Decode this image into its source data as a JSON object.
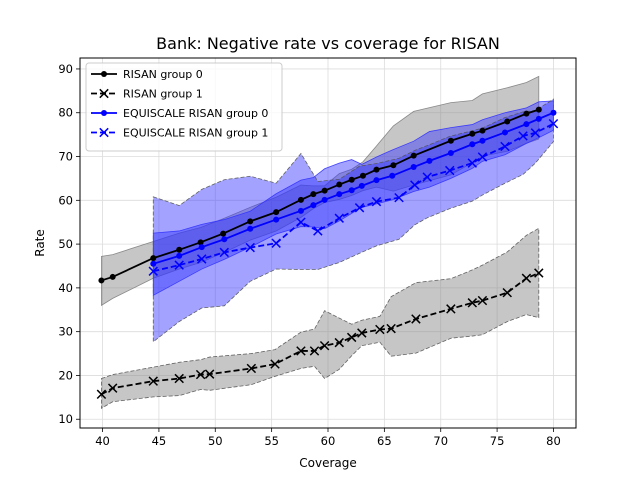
{
  "chart_data": {
    "type": "line",
    "title": "Bank: Negative rate vs coverage for RISAN",
    "xlabel": "Coverage",
    "ylabel": "Rate",
    "xlim": [
      38.0,
      82.0
    ],
    "ylim": [
      8.0,
      92.5
    ],
    "xticks": [
      "40",
      "45",
      "50",
      "55",
      "60",
      "65",
      "70",
      "75",
      "80"
    ],
    "yticks": [
      "10",
      "20",
      "30",
      "40",
      "50",
      "60",
      "70",
      "80",
      "90"
    ],
    "grid": true,
    "legend_position": "top-left",
    "series": [
      {
        "name": "RISAN group 0",
        "color": "#000000",
        "band_color": "#808080",
        "marker": "dot",
        "dashed": false,
        "x": [
          39.9,
          40.9,
          44.5,
          46.8,
          48.7,
          50.7,
          53.1,
          55.4,
          57.6,
          58.7,
          59.7,
          61.0,
          62.1,
          63.1,
          64.3,
          65.8,
          67.6,
          70.9,
          72.8,
          73.7,
          75.9,
          77.6,
          78.7
        ],
        "y": [
          41.7,
          42.5,
          46.8,
          48.7,
          50.4,
          52.4,
          55.2,
          57.3,
          60.1,
          61.4,
          62.2,
          63.6,
          64.7,
          65.6,
          67.0,
          68.0,
          70.2,
          73.6,
          75.2,
          75.9,
          78.0,
          79.8,
          80.7
        ],
        "band_upper": [
          47.2,
          47.6,
          50.6,
          52.5,
          53.8,
          55.8,
          58.4,
          60.7,
          63.5,
          63.3,
          63.3,
          66.1,
          67.1,
          68.8,
          72.4,
          77.0,
          80.3,
          82.3,
          82.8,
          84.3,
          85.7,
          86.9,
          88.3
        ],
        "band_lower": [
          36.0,
          37.6,
          42.2,
          44.3,
          45.8,
          48.0,
          50.9,
          53.0,
          56.1,
          58.1,
          59.5,
          60.2,
          61.1,
          62.2,
          63.0,
          62.1,
          63.5,
          65.8,
          68.6,
          70.1,
          71.2,
          73.0,
          74.0
        ]
      },
      {
        "name": "RISAN group 1",
        "color": "#000000",
        "band_color": "#808080",
        "marker": "x",
        "dashed": true,
        "x": [
          39.9,
          40.9,
          44.5,
          46.8,
          48.7,
          49.5,
          53.2,
          55.3,
          57.6,
          58.8,
          59.7,
          61.0,
          62.1,
          63.0,
          64.6,
          65.6,
          67.8,
          70.9,
          72.8,
          73.7,
          75.9,
          77.6,
          78.7
        ],
        "y": [
          15.7,
          17.1,
          18.7,
          19.3,
          20.2,
          20.3,
          21.6,
          22.6,
          25.6,
          25.6,
          26.8,
          27.5,
          28.7,
          29.7,
          30.5,
          30.7,
          32.9,
          35.2,
          36.6,
          37.1,
          38.9,
          42.2,
          43.4
        ],
        "band_upper": [
          19.3,
          20.2,
          21.9,
          23.0,
          23.6,
          24.2,
          25.0,
          25.9,
          29.9,
          30.6,
          34.8,
          33.1,
          31.7,
          32.6,
          33.5,
          38.0,
          41.2,
          42.1,
          44.1,
          45.2,
          48.2,
          52.0,
          53.6
        ],
        "band_lower": [
          12.5,
          14.0,
          15.1,
          15.4,
          16.8,
          16.6,
          17.9,
          19.8,
          21.6,
          22.1,
          19.3,
          21.4,
          24.5,
          26.8,
          27.6,
          24.4,
          25.1,
          28.5,
          29.0,
          29.3,
          32.3,
          33.9,
          33.2
        ]
      },
      {
        "name": "EQUISCALE RISAN group 0",
        "color": "#0000ff",
        "band_color": "#3333ff",
        "marker": "dot",
        "dashed": false,
        "x": [
          44.5,
          46.8,
          48.8,
          50.8,
          53.1,
          55.4,
          57.6,
          58.7,
          59.7,
          61.0,
          62.1,
          63.0,
          64.3,
          65.7,
          67.6,
          69.0,
          70.9,
          72.8,
          73.7,
          75.7,
          77.6,
          78.7,
          80.0
        ],
        "y": [
          45.5,
          47.3,
          49.3,
          51.1,
          53.5,
          55.6,
          57.6,
          58.9,
          60.1,
          61.4,
          62.3,
          63.3,
          64.6,
          65.6,
          67.6,
          69.0,
          70.8,
          72.8,
          73.6,
          75.5,
          77.4,
          78.6,
          80.0
        ],
        "band_upper": [
          52.5,
          53.0,
          54.5,
          55.6,
          57.5,
          61.5,
          64.6,
          65.2,
          67.2,
          68.5,
          69.3,
          68.2,
          69.9,
          71.5,
          73.5,
          75.7,
          76.6,
          77.3,
          78.4,
          80.0,
          81.1,
          82.5,
          82.7
        ],
        "band_lower": [
          38.3,
          41.5,
          44.3,
          46.5,
          49.3,
          52.3,
          54.0,
          53.9,
          53.5,
          55.3,
          57.0,
          58.4,
          59.2,
          60.1,
          62.0,
          63.0,
          65.0,
          67.3,
          68.9,
          70.4,
          73.0,
          74.3,
          76.0
        ]
      },
      {
        "name": "EQUISCALE RISAN group 1",
        "color": "#0000ff",
        "band_color": "#3333ff",
        "marker": "x",
        "dashed": true,
        "x": [
          44.5,
          46.8,
          48.8,
          50.8,
          53.1,
          55.4,
          57.6,
          59.1,
          61.0,
          62.8,
          64.3,
          66.3,
          67.7,
          68.8,
          70.8,
          72.8,
          73.7,
          75.7,
          77.3,
          78.4,
          80.0
        ],
        "y": [
          43.8,
          45.2,
          46.6,
          48.1,
          49.2,
          50.2,
          55.0,
          53.0,
          55.9,
          58.3,
          59.7,
          60.6,
          63.5,
          65.3,
          66.8,
          68.5,
          69.9,
          72.3,
          74.7,
          75.4,
          77.5
        ],
        "band_upper": [
          60.8,
          58.8,
          62.5,
          64.7,
          65.5,
          63.9,
          70.7,
          64.3,
          64.8,
          67.8,
          68.4,
          69.6,
          71.4,
          72.5,
          74.6,
          75.9,
          76.5,
          78.9,
          80.2,
          80.5,
          83.1
        ],
        "band_lower": [
          27.7,
          32.3,
          35.4,
          35.9,
          41.5,
          44.3,
          44.2,
          44.2,
          45.8,
          47.9,
          49.6,
          51.1,
          54.4,
          56.0,
          58.1,
          59.8,
          61.2,
          63.9,
          65.9,
          68.5,
          73.4
        ]
      }
    ]
  }
}
